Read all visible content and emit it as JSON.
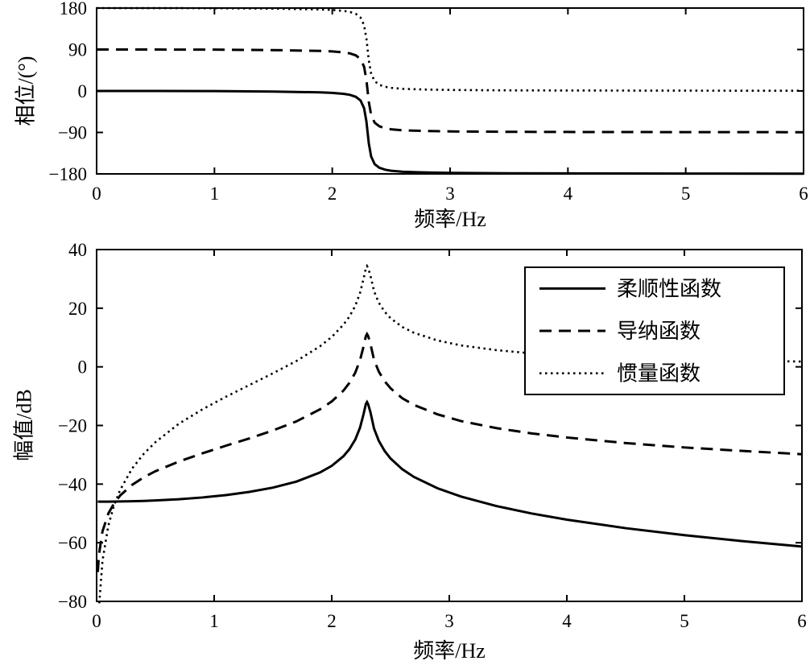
{
  "figure": {
    "background": "#ffffff",
    "ink": "#000000"
  },
  "chart_data": [
    {
      "id": "phase",
      "type": "line",
      "title": "",
      "xlabel": "频率/Hz",
      "ylabel": "相位/(°)",
      "xlim": [
        0,
        6
      ],
      "ylim": [
        -180,
        180
      ],
      "xticks": [
        0,
        1,
        2,
        3,
        4,
        5,
        6
      ],
      "yticks": [
        -180,
        -90,
        0,
        90,
        180
      ],
      "grid": false,
      "legend": null,
      "x": [
        0,
        0.5,
        1,
        1.5,
        1.9,
        2,
        2.1,
        2.15,
        2.2,
        2.24,
        2.27,
        2.29,
        2.3,
        2.31,
        2.33,
        2.36,
        2.4,
        2.45,
        2.5,
        2.6,
        2.8,
        3,
        3.5,
        4,
        5,
        6
      ],
      "series": [
        {
          "key": "compliance",
          "name": "柔顺性函数",
          "style": "solid",
          "values": [
            0,
            -0.1,
            -0.3,
            -1.3,
            -3,
            -4.1,
            -6.3,
            -8.4,
            -12.7,
            -20.7,
            -37.3,
            -66.5,
            -90,
            -113.5,
            -142.4,
            -158.8,
            -166.8,
            -171,
            -173.2,
            -175.4,
            -177,
            -177.8,
            -178.7,
            -179,
            -179.3,
            -179.5
          ]
        },
        {
          "key": "admittance",
          "name": "导纳函数",
          "style": "dashed",
          "values": [
            90,
            89.9,
            89.7,
            88.7,
            87,
            85.9,
            83.7,
            81.6,
            77.3,
            69.3,
            52.7,
            23.5,
            0,
            -23.5,
            -52.4,
            -68.8,
            -76.8,
            -81,
            -83.2,
            -85.4,
            -87,
            -87.8,
            -88.7,
            -89,
            -89.3,
            -89.5
          ]
        },
        {
          "key": "inertance",
          "name": "惯量函数",
          "style": "dotted",
          "values": [
            180,
            179.9,
            179.7,
            178.7,
            177,
            175.9,
            173.7,
            171.6,
            167.3,
            159.3,
            142.7,
            113.5,
            90,
            66.5,
            37.6,
            21.2,
            13.2,
            9,
            6.8,
            4.6,
            3,
            2.2,
            1.3,
            1,
            0.7,
            0.5
          ]
        }
      ]
    },
    {
      "id": "magnitude",
      "type": "line",
      "title": "",
      "xlabel": "频率/Hz",
      "ylabel": "幅值/dB",
      "xlim": [
        0,
        6
      ],
      "ylim": [
        -80,
        40
      ],
      "xticks": [
        0,
        1,
        2,
        3,
        4,
        5,
        6
      ],
      "yticks": [
        -80,
        -60,
        -40,
        -20,
        0,
        20,
        40
      ],
      "grid": false,
      "legend": {
        "position": "upper-right"
      },
      "x": [
        0.01,
        0.02,
        0.05,
        0.1,
        0.15,
        0.2,
        0.3,
        0.4,
        0.5,
        0.7,
        0.9,
        1.1,
        1.3,
        1.5,
        1.7,
        1.9,
        2,
        2.1,
        2.15,
        2.2,
        2.24,
        2.27,
        2.29,
        2.3,
        2.31,
        2.33,
        2.36,
        2.4,
        2.45,
        2.5,
        2.6,
        2.7,
        2.9,
        3.1,
        3.4,
        3.7,
        4,
        4.5,
        5,
        5.5,
        6
      ],
      "series": [
        {
          "key": "compliance",
          "name": "柔顺性函数",
          "style": "solid",
          "values": [
            -46,
            -46,
            -46,
            -45.98,
            -45.96,
            -45.93,
            -45.85,
            -45.73,
            -45.58,
            -45.16,
            -44.56,
            -43.74,
            -42.66,
            -41.19,
            -39.13,
            -36.05,
            -33.77,
            -30.47,
            -28.11,
            -24.81,
            -20.82,
            -16.26,
            -12.74,
            -12.02,
            -12.79,
            -15.59,
            -21.07,
            -25.21,
            -28.69,
            -31.24,
            -34.91,
            -37.57,
            -41.42,
            -44.24,
            -47.48,
            -50.02,
            -52.13,
            -55.03,
            -57.42,
            -59.48,
            -61.28
          ]
        },
        {
          "key": "admittance",
          "name": "导纳函数",
          "style": "dashed",
          "values": [
            -70,
            -64,
            -56.1,
            -50,
            -46.5,
            -43.9,
            -40.3,
            -37.7,
            -35.6,
            -32.3,
            -29.5,
            -26.9,
            -24.4,
            -21.7,
            -18.6,
            -14.5,
            -11.8,
            -8.1,
            -5.5,
            -2,
            2.2,
            6.8,
            10.4,
            11.2,
            10.5,
            7.7,
            2.4,
            -1.6,
            -4.9,
            -7.3,
            -10.7,
            -13,
            -16.2,
            -18.5,
            -20.9,
            -22.7,
            -24.1,
            -26,
            -27.5,
            -28.7,
            -29.8
          ]
        },
        {
          "key": "inertance",
          "name": "惯量函数",
          "style": "dotted",
          "values": [
            -94.1,
            -82,
            -66.1,
            -54.1,
            -47,
            -42,
            -34.8,
            -29.7,
            -25.7,
            -19.4,
            -14.5,
            -10.2,
            -6.2,
            -2.2,
            2,
            7,
            10.2,
            14.4,
            17.1,
            20.8,
            25.1,
            29.9,
            33.6,
            34.4,
            33.7,
            31,
            25.8,
            21.9,
            18.8,
            16.6,
            13.6,
            11.6,
            9,
            7.3,
            5.7,
            4.6,
            3.9,
            3,
            2.5,
            2.1,
            1.8
          ]
        }
      ]
    }
  ]
}
